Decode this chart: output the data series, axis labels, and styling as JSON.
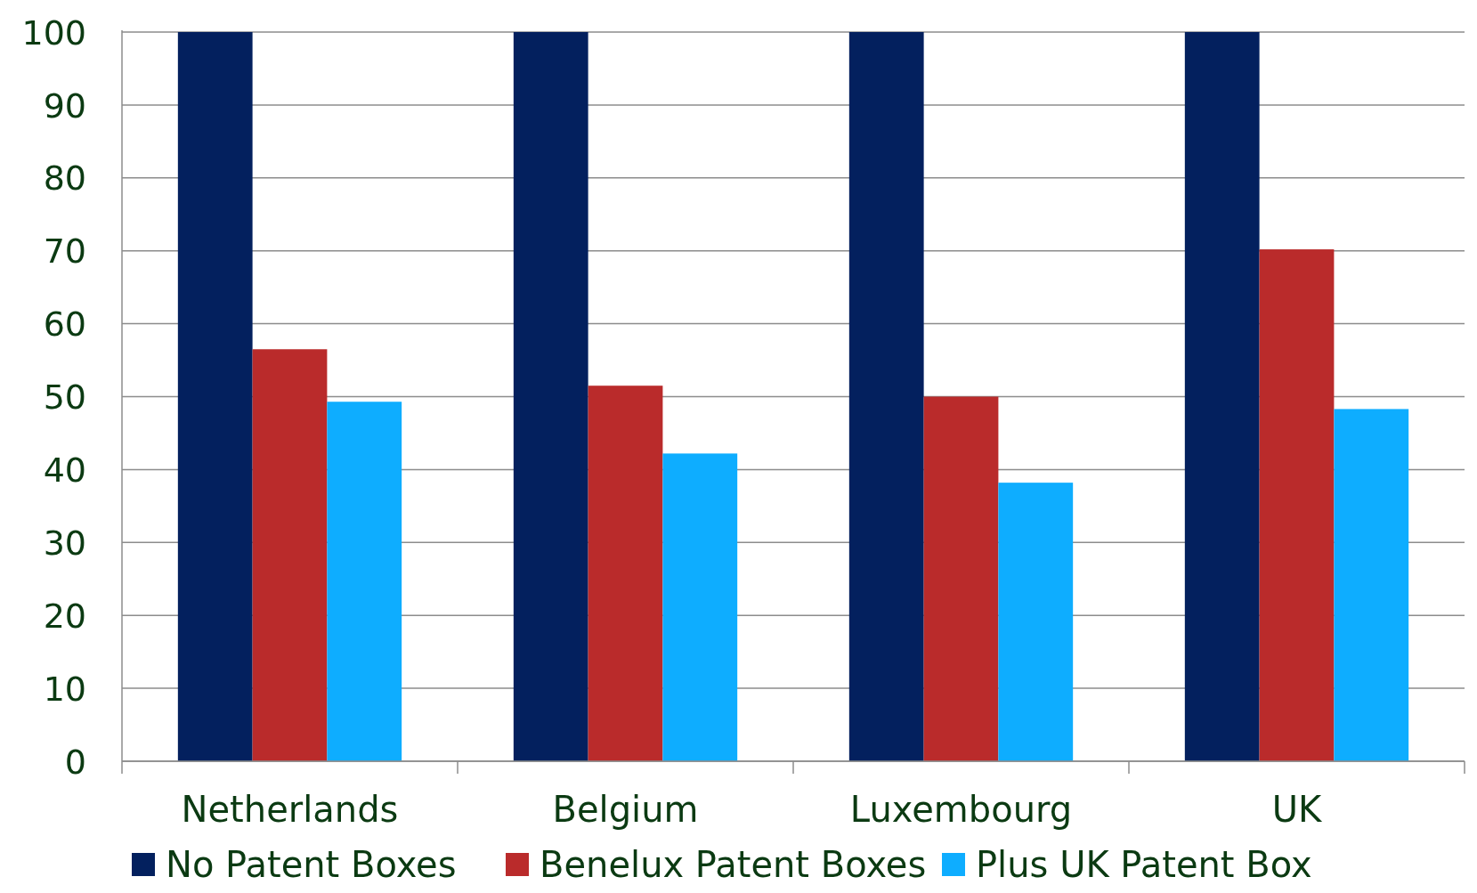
{
  "chart_data": {
    "type": "bar",
    "categories": [
      "Netherlands",
      "Belgium",
      "Luxembourg",
      "UK"
    ],
    "series": [
      {
        "name": "No Patent Boxes",
        "color": "#03205e",
        "values": [
          100,
          100,
          100,
          100
        ]
      },
      {
        "name": "Benelux Patent Boxes",
        "color": "#ba2b2b",
        "values": [
          56.5,
          51.5,
          50,
          70.2
        ]
      },
      {
        "name": "Plus UK Patent Box",
        "color": "#0eadff",
        "values": [
          49.3,
          42.2,
          38.2,
          48.3
        ]
      }
    ],
    "ylim": [
      0,
      100
    ],
    "yticks": [
      0,
      10,
      20,
      30,
      40,
      50,
      60,
      70,
      80,
      90,
      100
    ],
    "grid": "y",
    "legend": "bottom"
  }
}
